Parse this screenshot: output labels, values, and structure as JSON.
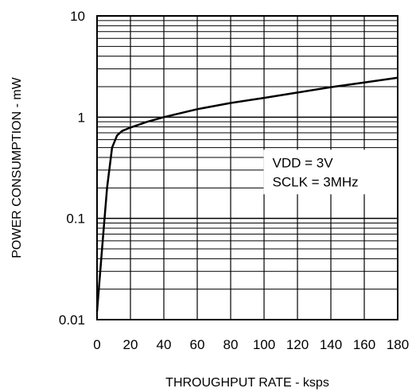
{
  "chart_data": {
    "type": "line",
    "title": "",
    "xlabel": "THROUGHPUT RATE - ksps",
    "ylabel": "POWER CONSUMPTION - mW",
    "xlim": [
      0,
      180
    ],
    "ylim": [
      0.01,
      10
    ],
    "y_scale": "log",
    "grid": true,
    "x_ticks": [
      "0",
      "20",
      "40",
      "60",
      "80",
      "100",
      "120",
      "140",
      "160",
      "180"
    ],
    "x_tick_values": [
      0,
      20,
      40,
      60,
      80,
      100,
      120,
      140,
      160,
      180
    ],
    "y_ticks": [
      "0.01",
      "0.1",
      "1",
      "10"
    ],
    "y_tick_values": [
      0.01,
      0.1,
      1,
      10
    ],
    "series": [
      {
        "x": [
          0,
          3,
          6,
          9,
          12,
          15,
          20,
          30,
          40,
          60,
          80,
          100,
          120,
          140,
          160,
          180
        ],
        "y": [
          0.012,
          0.05,
          0.2,
          0.5,
          0.66,
          0.73,
          0.79,
          0.9,
          1.0,
          1.2,
          1.38,
          1.55,
          1.75,
          1.98,
          2.2,
          2.45
        ]
      }
    ],
    "annotations": [
      "VDD = 3V",
      "SCLK = 3MHz"
    ]
  }
}
